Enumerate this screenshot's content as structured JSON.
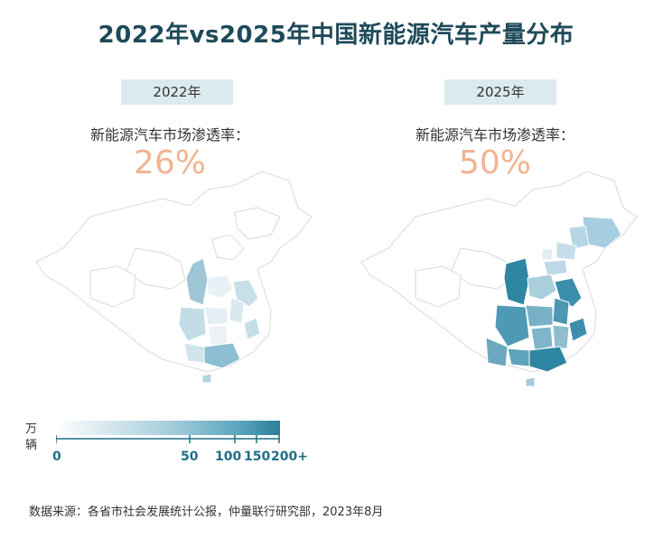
{
  "title": "2022年vs2025年中国新能源汽车产量分布",
  "panels": [
    {
      "year": "2022年",
      "subtitle": "新能源汽车市场渗透率：",
      "penetration": "26%"
    },
    {
      "year": "2025年",
      "subtitle": "新能源汽车市场渗透率：",
      "penetration": "50%"
    }
  ],
  "legend": {
    "unit_line1": "万",
    "unit_line2": "辆",
    "ticks": [
      "0",
      "50",
      "100",
      "150",
      "200+"
    ],
    "tick_values": [
      0,
      50,
      100,
      150,
      200
    ],
    "colors": {
      "low": "#ffffff",
      "high": "#2a7f9a"
    }
  },
  "source": "数据来源：各省市社会发展统计公报，仲量联行研究部，2023年8月",
  "colors": {
    "title": "#1f4a5a",
    "badge_bg": "#dbeaee",
    "penetration": "#f0b491",
    "outline": "#dcdcdc"
  }
}
